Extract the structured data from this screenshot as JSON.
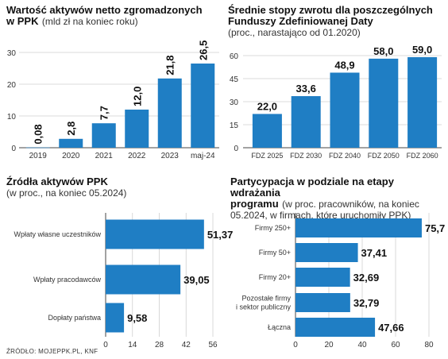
{
  "source": "ŹRÓDŁO: MOJEPPK.PL, KNF",
  "colors": {
    "bar": "#1f7ec4",
    "grid": "#cfcfcf",
    "axis": "#444444"
  },
  "chart_data": [
    {
      "type": "bar",
      "title": "Wartość aktywów netto zgromadzonych w PPK",
      "subtitle": "(mld zł na koniec roku)",
      "categories": [
        "2019",
        "2020",
        "2021",
        "2022",
        "2023",
        "maj-24"
      ],
      "values": [
        0.08,
        2.8,
        7.7,
        12.0,
        21.8,
        26.5
      ],
      "value_labels": [
        "0,08",
        "2,8",
        "7,7",
        "12,0",
        "21,8",
        "26,5"
      ],
      "yticks": [
        "0",
        "10",
        "20",
        "30"
      ],
      "ylim": [
        0,
        30
      ],
      "grid": true
    },
    {
      "type": "bar",
      "title": "Średnie stopy zwrotu dla poszczególnych Funduszy Zdefiniowanej Daty",
      "subtitle": "(proc., narastająco od 01.2020)",
      "categories": [
        "FDZ 2025",
        "FDZ 2030",
        "FDZ 2040",
        "FDZ 2050",
        "FDZ 2060"
      ],
      "values": [
        22.0,
        33.6,
        48.9,
        58.0,
        59.0
      ],
      "value_labels": [
        "22,0",
        "33,6",
        "48,9",
        "58,0",
        "59,0"
      ],
      "yticks": [
        "0",
        "15",
        "30",
        "45",
        "60"
      ],
      "ylim": [
        0,
        60
      ],
      "grid": true
    },
    {
      "type": "bar",
      "orientation": "horizontal",
      "title": "Źródła aktywów PPK",
      "subtitle": "(w proc., na koniec 05.2024)",
      "categories": [
        "Wpłaty własne uczestników",
        "Wpłaty pracodawców",
        "Dopłaty państwa"
      ],
      "values": [
        51.37,
        39.05,
        9.58
      ],
      "value_labels": [
        "51,37",
        "39,05",
        "9,58"
      ],
      "xticks": [
        "0",
        "14",
        "28",
        "42",
        "56"
      ],
      "xlim": [
        0,
        56
      ],
      "grid": true
    },
    {
      "type": "bar",
      "orientation": "horizontal",
      "title": "Partycypacja w podziale na etapy wdrażania programu",
      "subtitle": "(w proc. pracowników, na koniec 05.2024, w firmach, które uruchomiły PPK)",
      "categories": [
        "Firmy 250+",
        "Firmy 50+",
        "Firmy 20+",
        "Pozostałe firmy i sektor publiczny",
        "Łączna"
      ],
      "values": [
        75.7,
        37.41,
        32.69,
        32.79,
        47.66
      ],
      "value_labels": [
        "75,7",
        "37,41",
        "32,69",
        "32,79",
        "47,66"
      ],
      "xticks": [
        "0",
        "20",
        "40",
        "60",
        "80"
      ],
      "xlim": [
        0,
        80
      ],
      "grid": true
    }
  ]
}
